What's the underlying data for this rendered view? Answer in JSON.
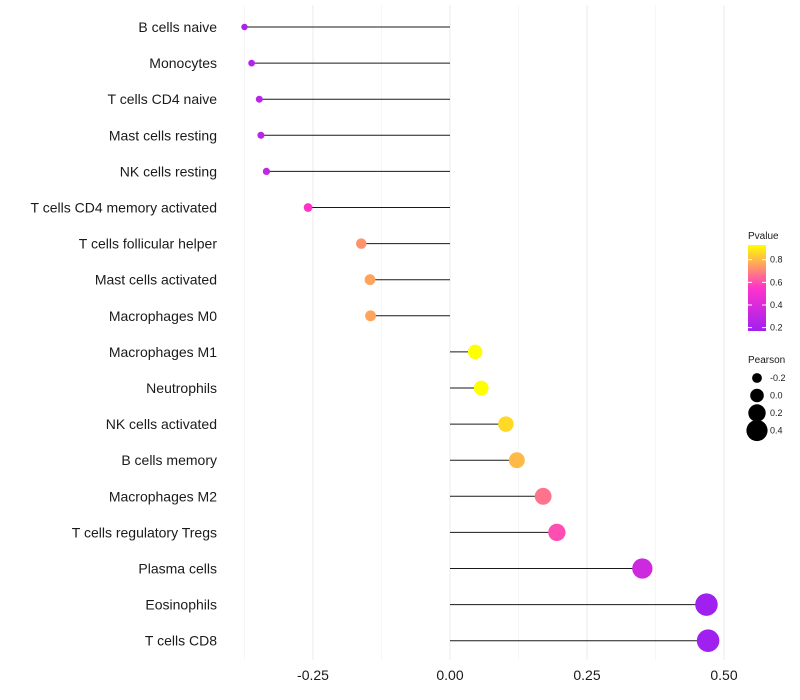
{
  "chart_data": {
    "type": "lollipop",
    "title": "",
    "xlabel": "",
    "ylabel": "",
    "xlim": [
      -0.38,
      0.52
    ],
    "x_ticks": [
      -0.25,
      0.0,
      0.25,
      0.5
    ],
    "x_tick_labels": [
      "-0.25",
      "0.00",
      "0.25",
      "0.50"
    ],
    "categories": [
      "B cells naive",
      "Monocytes",
      "T cells CD4 naive",
      "Mast cells resting",
      "NK cells resting",
      "T cells CD4 memory activated",
      "T cells follicular helper",
      "Mast cells activated",
      "Macrophages M0",
      "Macrophages M1",
      "Neutrophils",
      "NK cells activated",
      "B cells memory",
      "Macrophages M2",
      "T cells regulatory  Tregs",
      "Plasma cells",
      "Eosinophils",
      "T cells CD8"
    ],
    "values": [
      -0.375,
      -0.362,
      -0.348,
      -0.345,
      -0.335,
      -0.259,
      -0.162,
      -0.146,
      -0.145,
      0.046,
      0.057,
      0.102,
      0.122,
      0.17,
      0.195,
      0.351,
      0.468,
      0.471
    ],
    "pvalues": [
      0.22,
      0.25,
      0.26,
      0.27,
      0.3,
      0.55,
      0.73,
      0.76,
      0.76,
      0.97,
      0.95,
      0.86,
      0.8,
      0.67,
      0.6,
      0.35,
      0.07,
      0.06
    ],
    "legend": {
      "pvalue": {
        "title": "Pvalue",
        "range": [
          0.17,
          0.93
        ],
        "ticks": [
          0.2,
          0.4,
          0.6,
          0.8
        ],
        "tick_labels": [
          "0.2",
          "0.4",
          "0.6",
          "0.8"
        ],
        "colors": [
          "#a020f0",
          "#ff33cc",
          "#ffff00"
        ]
      },
      "pearson": {
        "title": "Pearson",
        "values": [
          -0.2,
          0.0,
          0.2,
          0.4
        ],
        "labels": [
          "-0.2",
          "0.0",
          "0.2",
          "0.4"
        ]
      }
    }
  }
}
